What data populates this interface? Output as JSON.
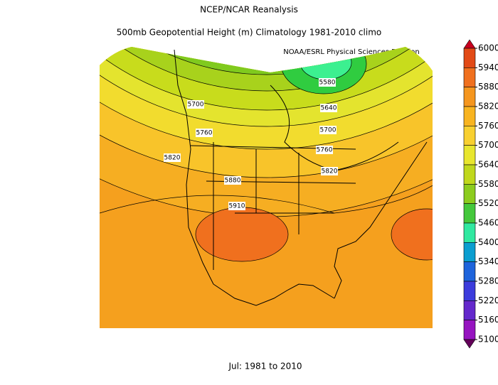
{
  "title": "NCEP/NCAR Reanalysis",
  "subtitle": "500mb Geopotential Height (m) Climatology 1981-2010 climo",
  "source": "NOAA/ESRL Physical Sciences Division",
  "footer": "Jul: 1981 to 2010",
  "colorbar": {
    "ticks": [
      6000,
      5940,
      5880,
      5820,
      5760,
      5700,
      5640,
      5580,
      5520,
      5460,
      5400,
      5340,
      5280,
      5220,
      5160,
      5100
    ],
    "colors": [
      "#c8001e",
      "#e24a16",
      "#f0701e",
      "#f5961e",
      "#f8b420",
      "#f8d030",
      "#e8e62e",
      "#c0d81c",
      "#8ccc1e",
      "#44c83c",
      "#30e8a0",
      "#0a9ed0",
      "#1e64dc",
      "#3c3cdc",
      "#6428cc",
      "#9614c0",
      "#a0008c",
      "#64005a"
    ]
  },
  "contour_labels": [
    5580,
    5640,
    5700,
    5700,
    5760,
    5760,
    5820,
    5820,
    5880,
    5910
  ]
}
